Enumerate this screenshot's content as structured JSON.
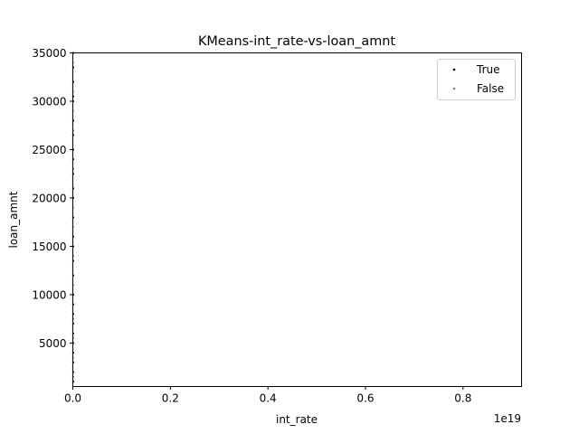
{
  "chart_data": {
    "type": "scatter",
    "title": "KMeans-int_rate-vs-loan_amnt",
    "xlabel": "int_rate",
    "ylabel": "loan_amnt",
    "x_offset_text": "1e19",
    "xlim": [
      0,
      0.92
    ],
    "ylim": [
      500,
      35000
    ],
    "x_ticks": [
      0.0,
      0.2,
      0.4,
      0.6,
      0.8
    ],
    "x_tick_labels": [
      "0.0",
      "0.2",
      "0.4",
      "0.6",
      "0.8"
    ],
    "y_ticks": [
      5000,
      10000,
      15000,
      20000,
      25000,
      30000,
      35000
    ],
    "y_tick_labels": [
      "5000",
      "10000",
      "15000",
      "20000",
      "25000",
      "30000",
      "35000"
    ],
    "grid": false,
    "legend_position": "top-right",
    "series": [
      {
        "name": "True",
        "color": "#000000",
        "points": [
          [
            0,
            35000
          ],
          [
            0,
            33500
          ],
          [
            0,
            32000
          ],
          [
            0,
            30500
          ],
          [
            0,
            30000
          ],
          [
            0,
            28000
          ],
          [
            0,
            26500
          ],
          [
            0,
            25000
          ],
          [
            0,
            24000
          ],
          [
            0,
            22500
          ],
          [
            0,
            21000
          ],
          [
            0,
            20000
          ],
          [
            0,
            18000
          ],
          [
            0,
            16000
          ],
          [
            0,
            15000
          ],
          [
            0,
            13500
          ],
          [
            0,
            12000
          ],
          [
            0,
            10000
          ],
          [
            0,
            9000
          ],
          [
            0,
            8000
          ],
          [
            0,
            7000
          ],
          [
            0,
            6000
          ],
          [
            0,
            5000
          ],
          [
            0,
            4000
          ],
          [
            0,
            3000
          ],
          [
            0,
            2000
          ],
          [
            0,
            1000
          ]
        ]
      },
      {
        "name": "False",
        "color": "#808080",
        "points": [
          [
            0,
            34000
          ],
          [
            0,
            31000
          ],
          [
            0,
            29000
          ],
          [
            0,
            27000
          ],
          [
            0,
            23000
          ],
          [
            0,
            19000
          ],
          [
            0,
            17000
          ],
          [
            0,
            14000
          ],
          [
            0,
            11000
          ],
          [
            0,
            7500
          ],
          [
            0,
            5500
          ],
          [
            0,
            3500
          ],
          [
            0,
            1500
          ]
        ]
      }
    ]
  }
}
